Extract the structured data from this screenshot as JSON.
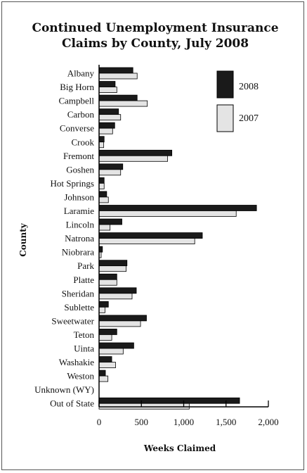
{
  "chart_data": {
    "type": "bar",
    "orientation": "horizontal",
    "title_lines": [
      "Continued Unemployment Insurance",
      "Claims by County, July 2008"
    ],
    "xlabel": "Weeks Claimed",
    "ylabel": "County",
    "xlim": [
      0,
      2000
    ],
    "xticks": [
      0,
      500,
      1000,
      1500,
      2000
    ],
    "xtick_labels": [
      "0",
      "500",
      "1,000",
      "1,500",
      "2,000"
    ],
    "categories": [
      "Albany",
      "Big Horn",
      "Campbell",
      "Carbon",
      "Converse",
      "Crook",
      "Fremont",
      "Goshen",
      "Hot Springs",
      "Johnson",
      "Laramie",
      "Lincoln",
      "Natrona",
      "Niobrara",
      "Park",
      "Platte",
      "Sheridan",
      "Sublette",
      "Sweetwater",
      "Teton",
      "Uinta",
      "Washakie",
      "Weston",
      "Unknown (WY)",
      "Out of State"
    ],
    "series": [
      {
        "name": "2008",
        "color": "#1a1a1a",
        "values": [
          400,
          190,
          450,
          230,
          185,
          60,
          860,
          280,
          60,
          90,
          1860,
          270,
          1220,
          40,
          330,
          210,
          440,
          110,
          560,
          210,
          410,
          150,
          75,
          0,
          1660
        ]
      },
      {
        "name": "2007",
        "color": "#e4e4e4",
        "values": [
          450,
          210,
          570,
          255,
          160,
          55,
          810,
          255,
          60,
          110,
          1620,
          130,
          1130,
          25,
          320,
          210,
          390,
          70,
          490,
          150,
          285,
          195,
          105,
          0,
          1065
        ]
      }
    ],
    "legend_position": "top-right",
    "grid": false
  }
}
